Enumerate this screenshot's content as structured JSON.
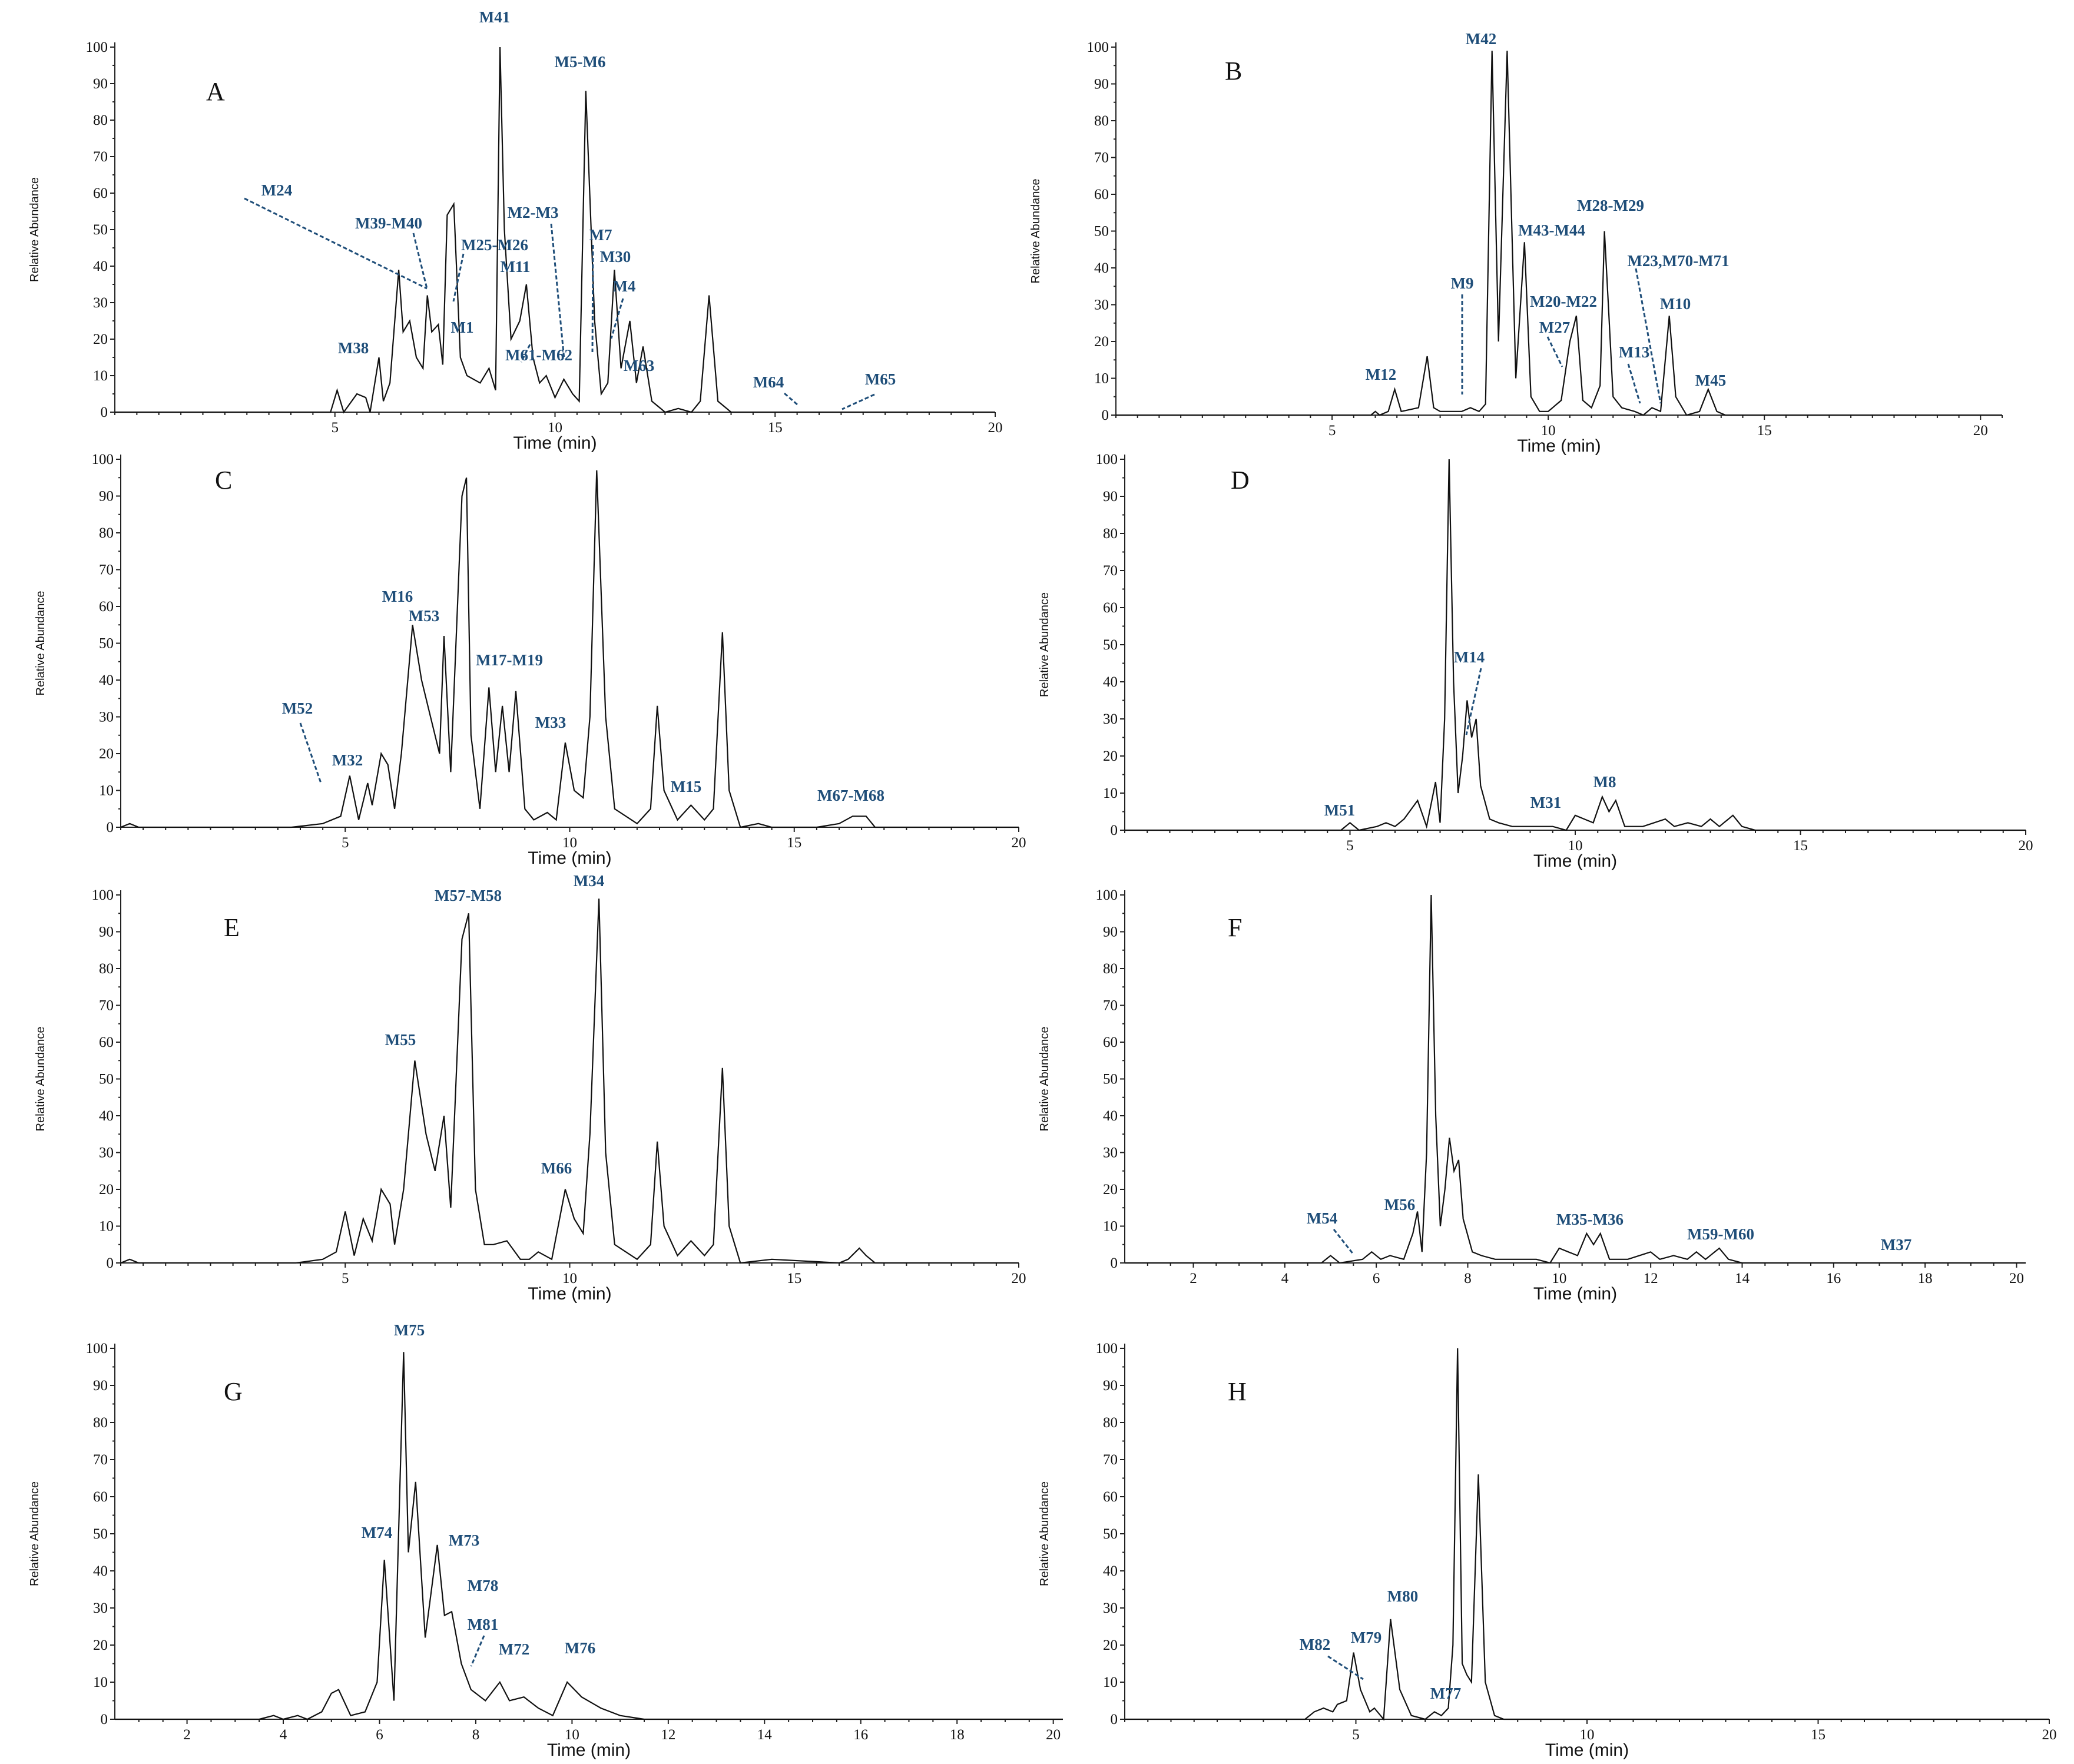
{
  "chart_data": [
    {
      "id": "A",
      "type": "line",
      "label": "A",
      "ylabel": "Relative Abundance",
      "xlabel": "Time (min)",
      "xlim": [
        0,
        20
      ],
      "ylim": [
        0,
        100
      ],
      "xticks": [
        5,
        10,
        15,
        20
      ],
      "yticks": [
        0,
        10,
        20,
        30,
        40,
        50,
        60,
        70,
        80,
        90,
        100
      ],
      "minor": true,
      "x": [
        0,
        4.9,
        5.05,
        5.2,
        5.5,
        5.7,
        5.8,
        6,
        6.1,
        6.25,
        6.45,
        6.55,
        6.7,
        6.85,
        7,
        7.1,
        7.2,
        7.35,
        7.45,
        7.55,
        7.7,
        7.85,
        8,
        8.3,
        8.5,
        8.65,
        8.75,
        8.85,
        9,
        9.2,
        9.35,
        9.5,
        9.65,
        9.8,
        10,
        10.2,
        10.4,
        10.55,
        10.7,
        10.9,
        11.05,
        11.2,
        11.35,
        11.5,
        11.7,
        11.85,
        12,
        12.2,
        12.5,
        12.8,
        13.1,
        13.3,
        13.5,
        13.7,
        14,
        20
      ],
      "y": [
        0,
        0,
        6,
        0,
        5,
        4,
        0,
        15,
        3,
        8,
        39,
        22,
        25,
        15,
        12,
        32,
        22,
        24,
        13,
        54,
        57,
        15,
        10,
        8,
        12,
        6,
        100,
        50,
        20,
        25,
        35,
        15,
        8,
        10,
        4,
        9,
        5,
        3,
        88,
        25,
        5,
        8,
        39,
        12,
        25,
        8,
        18,
        3,
        0,
        1,
        0,
        3,
        32,
        3,
        0,
        0
      ],
      "annotations": [
        {
          "text": "M41",
          "x": 8.75,
          "y": 100
        },
        {
          "text": "M5-M6",
          "x": 10.7,
          "y": 88
        },
        {
          "text": "M24",
          "x": 7.2,
          "y": 36
        },
        {
          "text": "M39-M40",
          "x": 7.3,
          "y": 40
        },
        {
          "text": "M25-M26",
          "x": 7.85,
          "y": 30
        },
        {
          "text": "M2-M3",
          "x": 10.1,
          "y": 20
        },
        {
          "text": "M7",
          "x": 10.9,
          "y": 16
        },
        {
          "text": "M30",
          "x": 11.1,
          "y": 38
        },
        {
          "text": "M11",
          "x": 9.3,
          "y": 35
        },
        {
          "text": "M4",
          "x": 11.6,
          "y": 20
        },
        {
          "text": "M1",
          "x": 8.3,
          "y": 11
        },
        {
          "text": "M61-M62",
          "x": 9.8,
          "y": 10
        },
        {
          "text": "M63",
          "x": 12.1,
          "y": 12
        },
        {
          "text": "M38",
          "x": 6,
          "y": 15
        },
        {
          "text": "M64",
          "x": 15.8,
          "y": 2
        },
        {
          "text": "M65",
          "x": 16.6,
          "y": 2
        }
      ]
    },
    {
      "id": "B",
      "type": "line",
      "label": "B",
      "ylabel": "Relative Abundance",
      "xlabel": "Time (min)",
      "xlim": [
        0,
        20.5
      ],
      "ylim": [
        0,
        100
      ],
      "xticks": [
        5,
        10,
        15,
        20
      ],
      "yticks": [
        0,
        10,
        20,
        30,
        40,
        50,
        60,
        70,
        80,
        90,
        100
      ],
      "minor": true,
      "x": [
        0,
        5.9,
        6,
        6.1,
        6.3,
        6.45,
        6.6,
        7,
        7.2,
        7.35,
        7.5,
        8,
        8.2,
        8.4,
        8.55,
        8.7,
        8.85,
        9.05,
        9.25,
        9.45,
        9.6,
        9.8,
        10,
        10.3,
        10.5,
        10.65,
        10.8,
        11,
        11.2,
        11.3,
        11.4,
        11.5,
        11.7,
        12,
        12.2,
        12.4,
        12.6,
        12.8,
        12.95,
        13.2,
        13.5,
        13.7,
        13.9,
        14.1,
        20.5
      ],
      "y": [
        0,
        0,
        1,
        0,
        1,
        7,
        1,
        2,
        16,
        2,
        1,
        1,
        2,
        1,
        3,
        99,
        20,
        99,
        10,
        47,
        5,
        1,
        1,
        4,
        20,
        27,
        4,
        2,
        8,
        50,
        28,
        5,
        2,
        1,
        0,
        2,
        1,
        27,
        5,
        0,
        1,
        7,
        1,
        0,
        0
      ],
      "annotations": [
        {
          "text": "M42",
          "x": 8.7,
          "y": 99
        },
        {
          "text": "M28-M29",
          "x": 11.3,
          "y": 50
        },
        {
          "text": "M43-M44",
          "x": 9.45,
          "y": 47
        },
        {
          "text": "M23,M70-M71",
          "x": 12.6,
          "y": 4
        },
        {
          "text": "M9",
          "x": 8.2,
          "y": 5
        },
        {
          "text": "M20-M22",
          "x": 10.65,
          "y": 27
        },
        {
          "text": "M27",
          "x": 10.5,
          "y": 13
        },
        {
          "text": "M10",
          "x": 12.8,
          "y": 27
        },
        {
          "text": "M13",
          "x": 12.2,
          "y": 3
        },
        {
          "text": "M12",
          "x": 6.45,
          "y": 7
        },
        {
          "text": "M45",
          "x": 13.7,
          "y": 7
        }
      ]
    },
    {
      "id": "C",
      "type": "line",
      "label": "C",
      "ylabel": "Relative Abundance",
      "xlabel": "Time (min)",
      "xlim": [
        0,
        20
      ],
      "ylim": [
        0,
        100
      ],
      "xticks": [
        5,
        10,
        15,
        20
      ],
      "yticks": [
        0,
        10,
        20,
        30,
        40,
        50,
        60,
        70,
        80,
        90,
        100
      ],
      "minor": true,
      "x": [
        0,
        0.2,
        0.4,
        0.6,
        3.8,
        4.5,
        4.9,
        5.1,
        5.3,
        5.5,
        5.6,
        5.8,
        5.95,
        6.1,
        6.25,
        6.5,
        6.7,
        6.9,
        7.1,
        7.2,
        7.35,
        7.6,
        7.7,
        7.8,
        8,
        8.2,
        8.35,
        8.5,
        8.65,
        8.8,
        9,
        9.2,
        9.5,
        9.7,
        9.9,
        10.1,
        10.3,
        10.45,
        10.6,
        10.8,
        11,
        11.5,
        11.8,
        11.95,
        12.1,
        12.4,
        12.7,
        13,
        13.2,
        13.4,
        13.55,
        13.8,
        14.2,
        14.5,
        15.5,
        16,
        16.3,
        16.6,
        16.8,
        20
      ],
      "y": [
        0,
        1,
        0,
        0,
        0,
        1,
        3,
        14,
        2,
        12,
        6,
        20,
        17,
        5,
        20,
        55,
        40,
        30,
        20,
        52,
        15,
        90,
        95,
        25,
        5,
        38,
        15,
        33,
        15,
        37,
        5,
        2,
        4,
        2,
        23,
        10,
        8,
        30,
        97,
        30,
        5,
        1,
        5,
        33,
        10,
        2,
        6,
        2,
        5,
        53,
        10,
        0,
        1,
        0,
        0,
        1,
        3,
        3,
        0,
        0
      ],
      "annotations": [
        {
          "text": "M16",
          "x": 6.5,
          "y": 55
        },
        {
          "text": "M53",
          "x": 7.2,
          "y": 52
        },
        {
          "text": "M17-M19",
          "x": 8.3,
          "y": 38
        },
        {
          "text": "M52",
          "x": 5,
          "y": 12
        },
        {
          "text": "M32",
          "x": 5.1,
          "y": 14
        },
        {
          "text": "M33",
          "x": 9.9,
          "y": 23
        },
        {
          "text": "M15",
          "x": 12.7,
          "y": 6
        },
        {
          "text": "M67-M68",
          "x": 16.3,
          "y": 3
        }
      ]
    },
    {
      "id": "D",
      "type": "line",
      "label": "D",
      "ylabel": "Relative Abundance",
      "xlabel": "Time (min)",
      "xlim": [
        0,
        20
      ],
      "ylim": [
        0,
        100
      ],
      "xticks": [
        5,
        10,
        15,
        20
      ],
      "yticks": [
        0,
        10,
        20,
        30,
        40,
        50,
        60,
        70,
        80,
        90,
        100
      ],
      "minor": true,
      "x": [
        0,
        4.8,
        5,
        5.2,
        5.6,
        5.8,
        6,
        6.2,
        6.5,
        6.7,
        6.9,
        7,
        7.1,
        7.2,
        7.3,
        7.4,
        7.5,
        7.6,
        7.7,
        7.8,
        7.9,
        8.1,
        8.3,
        8.6,
        9,
        9.5,
        9.8,
        10,
        10.2,
        10.4,
        10.6,
        10.75,
        10.9,
        11.1,
        11.5,
        12,
        12.2,
        12.5,
        12.8,
        13,
        13.2,
        13.5,
        13.7,
        14,
        20
      ],
      "y": [
        0,
        0,
        2,
        0,
        1,
        2,
        1,
        3,
        8,
        1,
        13,
        2,
        30,
        100,
        40,
        10,
        20,
        35,
        25,
        30,
        12,
        3,
        2,
        1,
        1,
        1,
        0,
        4,
        3,
        2,
        9,
        5,
        8,
        1,
        1,
        3,
        1,
        2,
        1,
        3,
        1,
        4,
        1,
        0,
        0
      ],
      "annotations": [
        {
          "text": "M14",
          "x": 7.6,
          "y": 25
        },
        {
          "text": "M51",
          "x": 5,
          "y": 2
        },
        {
          "text": "M31",
          "x": 10.4,
          "y": 3
        },
        {
          "text": "M8",
          "x": 10.8,
          "y": 9
        }
      ]
    },
    {
      "id": "E",
      "type": "line",
      "label": "E",
      "ylabel": "Relative Abundance",
      "xlabel": "Time (min)",
      "xlim": [
        0,
        20
      ],
      "ylim": [
        0,
        100
      ],
      "xticks": [
        5,
        10,
        15,
        20
      ],
      "yticks": [
        0,
        10,
        20,
        30,
        40,
        50,
        60,
        70,
        80,
        90,
        100
      ],
      "minor": true,
      "x": [
        0,
        0.2,
        0.4,
        3.9,
        4.5,
        4.8,
        5,
        5.2,
        5.4,
        5.6,
        5.8,
        6,
        6.1,
        6.3,
        6.55,
        6.8,
        7,
        7.2,
        7.35,
        7.6,
        7.75,
        7.9,
        8.1,
        8.3,
        8.6,
        8.9,
        9.1,
        9.3,
        9.6,
        9.9,
        10.1,
        10.3,
        10.45,
        10.65,
        10.8,
        11,
        11.5,
        11.8,
        11.95,
        12.1,
        12.4,
        12.7,
        13,
        13.2,
        13.4,
        13.55,
        13.8,
        14.5,
        16,
        16.2,
        16.45,
        16.6,
        16.8,
        20
      ],
      "y": [
        0,
        1,
        0,
        0,
        1,
        3,
        14,
        2,
        12,
        6,
        20,
        16,
        5,
        20,
        55,
        35,
        25,
        40,
        15,
        88,
        95,
        20,
        5,
        5,
        6,
        1,
        1,
        3,
        1,
        20,
        12,
        8,
        35,
        99,
        30,
        5,
        1,
        5,
        33,
        10,
        2,
        6,
        2,
        5,
        53,
        10,
        0,
        1,
        0,
        1,
        4,
        2,
        0,
        0
      ],
      "annotations": [
        {
          "text": "M57-M58",
          "x": 7.7,
          "y": 95
        },
        {
          "text": "M34",
          "x": 10.65,
          "y": 99
        },
        {
          "text": "M55",
          "x": 6.55,
          "y": 55
        },
        {
          "text": "M66",
          "x": 9.9,
          "y": 20
        }
      ]
    },
    {
      "id": "F",
      "type": "line",
      "label": "F",
      "ylabel": "Relative Abundance",
      "xlabel": "Time (min)",
      "xlim": [
        0.5,
        20.2
      ],
      "ylim": [
        0,
        100
      ],
      "xticks": [
        2,
        4,
        6,
        8,
        10,
        12,
        14,
        16,
        18,
        20
      ],
      "yticks": [
        0,
        10,
        20,
        30,
        40,
        50,
        60,
        70,
        80,
        90,
        100
      ],
      "minor": false,
      "x": [
        0.5,
        4.8,
        5,
        5.2,
        5.7,
        5.9,
        6.1,
        6.3,
        6.6,
        6.8,
        6.9,
        7,
        7.1,
        7.2,
        7.3,
        7.4,
        7.5,
        7.6,
        7.7,
        7.8,
        7.9,
        8.1,
        8.3,
        8.6,
        9,
        9.5,
        9.8,
        10,
        10.2,
        10.4,
        10.6,
        10.75,
        10.9,
        11.1,
        11.5,
        12,
        12.2,
        12.5,
        12.8,
        13,
        13.2,
        13.5,
        13.7,
        14,
        20.2
      ],
      "y": [
        0,
        0,
        2,
        0,
        1,
        3,
        1,
        2,
        1,
        8,
        14,
        3,
        30,
        100,
        40,
        10,
        20,
        34,
        25,
        28,
        12,
        3,
        2,
        1,
        1,
        1,
        0,
        4,
        3,
        2,
        8,
        5,
        8,
        1,
        1,
        3,
        1,
        2,
        1,
        3,
        1,
        4,
        1,
        0,
        0
      ],
      "annotations": [
        {
          "text": "M54",
          "x": 5.6,
          "y": 1
        },
        {
          "text": "M56",
          "x": 6.9,
          "y": 14
        },
        {
          "text": "M35-M36",
          "x": 10.8,
          "y": 8
        },
        {
          "text": "M59-M60",
          "x": 13,
          "y": 3
        },
        {
          "text": "M37",
          "x": 17.3,
          "y": 0
        }
      ]
    },
    {
      "id": "G",
      "type": "line",
      "label": "G",
      "ylabel": "Relative Abundance",
      "xlabel": "Time (min)",
      "xlim": [
        0.5,
        20.2
      ],
      "ylim": [
        0,
        100
      ],
      "xticks": [
        2,
        4,
        6,
        8,
        10,
        12,
        14,
        16,
        18,
        20
      ],
      "yticks": [
        0,
        10,
        20,
        30,
        40,
        50,
        60,
        70,
        80,
        90,
        100
      ],
      "minor": true,
      "x": [
        0.5,
        3.5,
        3.8,
        4,
        4.3,
        4.5,
        4.8,
        5,
        5.15,
        5.4,
        5.7,
        5.95,
        6.1,
        6.3,
        6.5,
        6.6,
        6.75,
        6.95,
        7.2,
        7.35,
        7.5,
        7.7,
        7.9,
        8.2,
        8.5,
        8.7,
        9,
        9.3,
        9.6,
        9.9,
        10.2,
        10.6,
        11,
        11.5,
        12,
        20.2
      ],
      "y": [
        0,
        0,
        1,
        0,
        1,
        0,
        2,
        7,
        8,
        1,
        2,
        10,
        43,
        5,
        99,
        45,
        64,
        22,
        47,
        28,
        29,
        15,
        8,
        5,
        10,
        5,
        6,
        3,
        1,
        10,
        6,
        3,
        1,
        0,
        0,
        0
      ],
      "annotations": [
        {
          "text": "M75",
          "x": 6.5,
          "y": 99
        },
        {
          "text": "M74",
          "x": 6.1,
          "y": 43
        },
        {
          "text": "M73",
          "x": 7.2,
          "y": 47
        },
        {
          "text": "M78",
          "x": 7.5,
          "y": 29
        },
        {
          "text": "M81",
          "x": 7.8,
          "y": 15
        },
        {
          "text": "M72",
          "x": 8.5,
          "y": 10
        },
        {
          "text": "M76",
          "x": 9.9,
          "y": 10
        }
      ]
    },
    {
      "id": "H",
      "type": "line",
      "label": "H",
      "ylabel": "Relative Abundance",
      "xlabel": "Time (min)",
      "xlim": [
        0,
        20
      ],
      "ylim": [
        0,
        100
      ],
      "xticks": [
        5,
        10,
        15,
        20
      ],
      "yticks": [
        0,
        10,
        20,
        30,
        40,
        50,
        60,
        70,
        80,
        90,
        100
      ],
      "minor": true,
      "x": [
        0,
        3.9,
        4.1,
        4.3,
        4.5,
        4.6,
        4.8,
        4.95,
        5.1,
        5.3,
        5.4,
        5.6,
        5.75,
        5.95,
        6.2,
        6.5,
        6.7,
        6.85,
        7,
        7.1,
        7.2,
        7.3,
        7.4,
        7.5,
        7.65,
        7.8,
        8,
        8.2,
        20
      ],
      "y": [
        0,
        0,
        2,
        3,
        2,
        4,
        5,
        18,
        8,
        2,
        3,
        0,
        27,
        8,
        1,
        0,
        2,
        1,
        3,
        20,
        100,
        15,
        12,
        10,
        66,
        10,
        1,
        0,
        0
      ],
      "annotations": [
        {
          "text": "M80",
          "x": 5.75,
          "y": 27
        },
        {
          "text": "M79",
          "x": 4.95,
          "y": 18
        },
        {
          "text": "M82",
          "x": 5.25,
          "y": 8
        },
        {
          "text": "M77",
          "x": 6.8,
          "y": 1
        }
      ]
    }
  ]
}
